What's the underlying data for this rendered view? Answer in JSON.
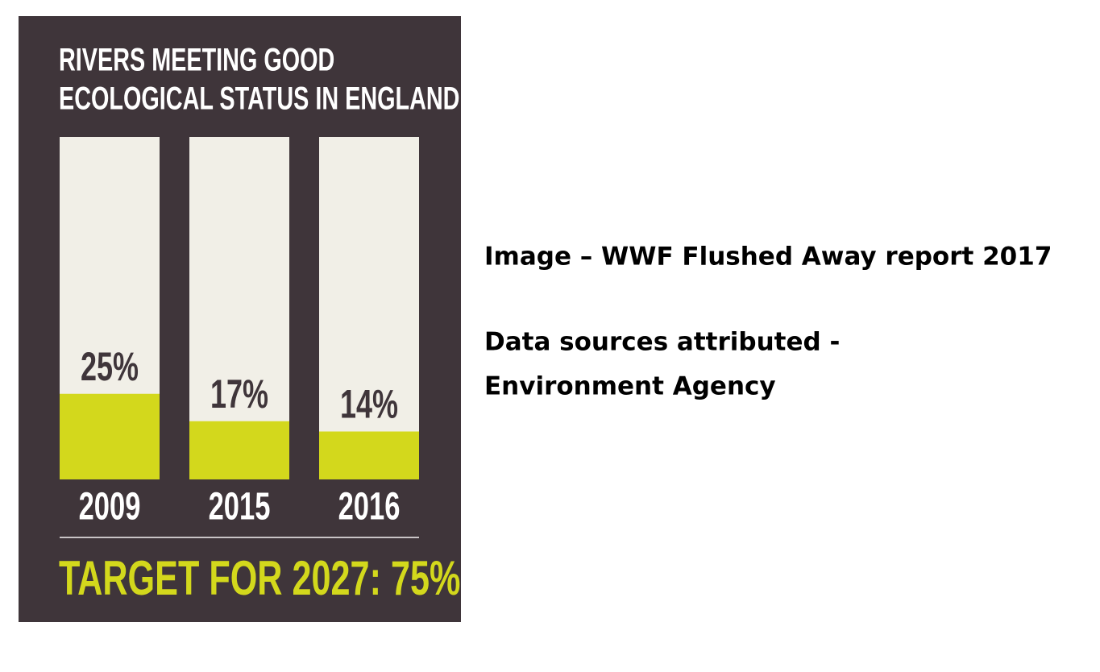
{
  "chart_data": {
    "type": "bar",
    "title": [
      "RIVERS MEETING GOOD",
      "ECOLOGICAL STATUS IN ENGLAND"
    ],
    "categories": [
      "2009",
      "2015",
      "2016"
    ],
    "values": [
      25,
      17,
      14
    ],
    "value_labels": [
      "25%",
      "17%",
      "14%"
    ],
    "ylim": [
      0,
      100
    ],
    "color": "#d3d81c",
    "background_color": "#f1efe7",
    "panel_color": "#3f353a",
    "annotation": "TARGET FOR 2027: 75%"
  },
  "caption": [
    "Image – WWF Flushed Away report 2017",
    "Data sources attributed  -",
    "Environment Agency"
  ]
}
